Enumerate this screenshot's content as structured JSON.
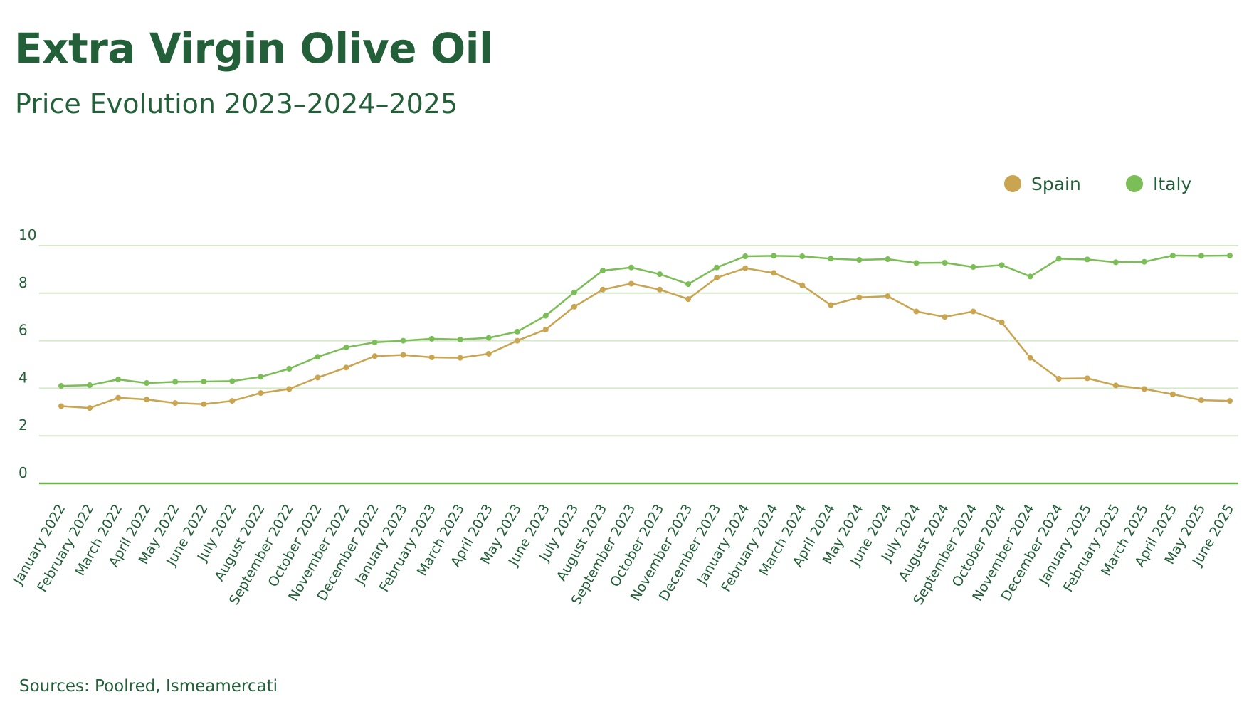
{
  "title": "Extra Virgin Olive Oil",
  "subtitle": "Price Evolution 2023–2024–2025",
  "source": "Sources: Poolred, Ismeamercati",
  "colors": {
    "text": "#235f38",
    "spain": "#c9a451",
    "italy": "#7bbd56",
    "grid": "#d6e9cb",
    "axis": "#6cb44a"
  },
  "chart_data": {
    "type": "line",
    "legend_position": "top-right",
    "grid": true,
    "ylim": [
      0,
      10
    ],
    "yticks": [
      0,
      2,
      4,
      6,
      8,
      10
    ],
    "categories": [
      "January 2022",
      "February 2022",
      "March 2022",
      "April 2022",
      "May 2022",
      "June 2022",
      "July 2022",
      "August 2022",
      "September 2022",
      "October 2022",
      "November 2022",
      "December 2022",
      "January 2023",
      "February 2023",
      "March 2023",
      "April 2023",
      "May 2023",
      "June 2023",
      "July 2023",
      "August 2023",
      "September 2023",
      "October 2023",
      "November 2023",
      "December 2023",
      "January 2024",
      "February 2024",
      "March 2024",
      "April 2024",
      "May 2024",
      "June 2024",
      "July 2024",
      "August 2024",
      "September 2024",
      "October 2024",
      "November 2024",
      "December 2024",
      "January 2025",
      "February 2025",
      "March 2025",
      "April 2025",
      "May 2025",
      "June 2025"
    ],
    "series": [
      {
        "name": "Spain",
        "color": "#c9a451",
        "values": [
          3.25,
          3.17,
          3.6,
          3.53,
          3.38,
          3.33,
          3.47,
          3.8,
          3.97,
          4.45,
          4.87,
          5.35,
          5.4,
          5.3,
          5.28,
          5.45,
          6.0,
          6.47,
          7.43,
          8.15,
          8.4,
          8.15,
          7.75,
          8.65,
          9.05,
          8.85,
          8.33,
          7.5,
          7.82,
          7.87,
          7.23,
          7.0,
          7.23,
          6.77,
          5.28,
          4.4,
          4.42,
          4.12,
          3.97,
          3.75,
          3.5,
          3.47
        ]
      },
      {
        "name": "Italy",
        "color": "#7bbd56",
        "values": [
          4.1,
          4.13,
          4.37,
          4.22,
          4.27,
          4.28,
          4.3,
          4.48,
          4.82,
          5.32,
          5.72,
          5.93,
          6.0,
          6.08,
          6.05,
          6.12,
          6.38,
          7.05,
          8.03,
          8.95,
          9.08,
          8.8,
          8.38,
          9.08,
          9.55,
          9.57,
          9.55,
          9.45,
          9.4,
          9.43,
          9.27,
          9.28,
          9.1,
          9.18,
          8.7,
          9.45,
          9.42,
          9.3,
          9.32,
          9.58,
          9.57,
          9.58
        ]
      }
    ]
  }
}
